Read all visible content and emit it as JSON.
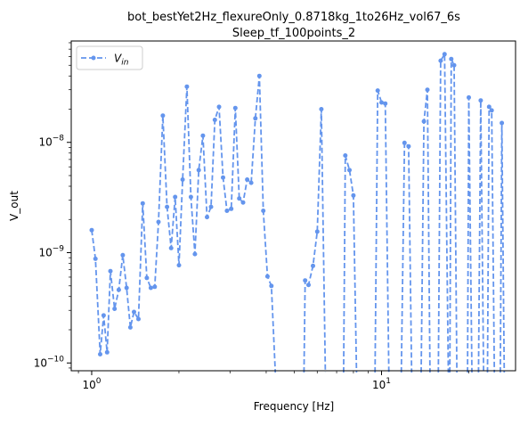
{
  "colors": {
    "series": "#6495ED",
    "axes": "#000000",
    "background": "#ffffff"
  },
  "chart_data": {
    "type": "line",
    "title_line1": "bot_bestYet2Hz_flexureOnly_0.8718kg_1to26Hz_vol67_6s",
    "title_line2": "Sleep_tf_100points_2",
    "xlabel": "Frequency [Hz]",
    "ylabel": "V_out",
    "xscale": "log",
    "yscale": "log",
    "xlim": [
      0.85,
      29
    ],
    "ylim": [
      8.5e-11,
      8.3e-08
    ],
    "grid": false,
    "legend_position": "upper-left",
    "x_ticks": [
      {
        "value": 1,
        "base": "10",
        "exp": "0"
      },
      {
        "value": 10,
        "base": "10",
        "exp": "1"
      }
    ],
    "y_ticks": [
      {
        "value": 1e-10,
        "base": "10",
        "exp": "−10"
      },
      {
        "value": 1e-09,
        "base": "10",
        "exp": "−9"
      },
      {
        "value": 1e-08,
        "base": "10",
        "exp": "−8"
      }
    ],
    "series": [
      {
        "name": "V_in",
        "name_main": "V",
        "name_sub": "in",
        "style": "dashed",
        "marker": "dot",
        "points": [
          [
            1.0,
            1.6e-09
          ],
          [
            1.03,
            8.8e-10
          ],
          [
            1.07,
            1.2e-10
          ],
          [
            1.1,
            2.7e-10
          ],
          [
            1.13,
            1.25e-10
          ],
          [
            1.16,
            6.8e-10
          ],
          [
            1.2,
            3.1e-10
          ],
          [
            1.24,
            4.6e-10
          ],
          [
            1.28,
            9.5e-10
          ],
          [
            1.32,
            4.8e-10
          ],
          [
            1.36,
            2.1e-10
          ],
          [
            1.4,
            2.9e-10
          ],
          [
            1.45,
            2.5e-10
          ],
          [
            1.5,
            2.8e-09
          ],
          [
            1.55,
            5.9e-10
          ],
          [
            1.6,
            4.8e-10
          ],
          [
            1.65,
            4.9e-10
          ],
          [
            1.7,
            1.9e-09
          ],
          [
            1.76,
            1.75e-08
          ],
          [
            1.82,
            2.6e-09
          ],
          [
            1.88,
            1.1e-09
          ],
          [
            1.94,
            3.2e-09
          ],
          [
            2.0,
            7.7e-10
          ],
          [
            2.06,
            4.6e-09
          ],
          [
            2.13,
            3.2e-08
          ],
          [
            2.2,
            3.2e-09
          ],
          [
            2.27,
            9.7e-10
          ],
          [
            2.34,
            5.6e-09
          ],
          [
            2.42,
            1.15e-08
          ],
          [
            2.5,
            2.1e-09
          ],
          [
            2.58,
            2.6e-09
          ],
          [
            2.66,
            1.6e-08
          ],
          [
            2.75,
            2.1e-08
          ],
          [
            2.84,
            4.8e-09
          ],
          [
            2.93,
            2.4e-09
          ],
          [
            3.03,
            2.5e-09
          ],
          [
            3.13,
            2.05e-08
          ],
          [
            3.23,
            3.1e-09
          ],
          [
            3.33,
            2.85e-09
          ],
          [
            3.44,
            4.6e-09
          ],
          [
            3.55,
            4.3e-09
          ],
          [
            3.67,
            1.65e-08
          ],
          [
            3.79,
            4e-08
          ],
          [
            3.91,
            2.4e-09
          ],
          [
            4.04,
            6.1e-10
          ],
          [
            4.17,
            5e-10
          ],
          [
            4.3,
            null
          ],
          [
            5.4,
            null
          ],
          [
            5.45,
            5.6e-10
          ],
          [
            5.6,
            5.1e-10
          ],
          [
            5.8,
            7.6e-10
          ],
          [
            6.0,
            1.55e-09
          ],
          [
            6.2,
            2e-08
          ],
          [
            6.4,
            null
          ],
          [
            7.4,
            null
          ],
          [
            7.5,
            7.6e-09
          ],
          [
            7.75,
            5.6e-09
          ],
          [
            8.0,
            3.3e-09
          ],
          [
            8.2,
            null
          ],
          [
            9.5,
            null
          ],
          [
            9.7,
            2.95e-08
          ],
          [
            10.0,
            2.3e-08
          ],
          [
            10.3,
            2.25e-08
          ],
          [
            10.6,
            null
          ],
          [
            11.7,
            null
          ],
          [
            12.0,
            9.9e-09
          ],
          [
            12.4,
            9.2e-09
          ],
          [
            12.7,
            null
          ],
          [
            13.7,
            null
          ],
          [
            14.0,
            1.55e-08
          ],
          [
            14.4,
            3e-08
          ],
          [
            14.7,
            null
          ],
          [
            15.7,
            null
          ],
          [
            16.0,
            5.5e-08
          ],
          [
            16.5,
            6.3e-08
          ],
          [
            17.0,
            null
          ],
          [
            17.2,
            null
          ],
          [
            17.4,
            5.7e-08
          ],
          [
            17.8,
            5e-08
          ],
          [
            18.2,
            null
          ],
          [
            19.8,
            null
          ],
          [
            20.0,
            2.55e-08
          ],
          [
            20.5,
            null
          ],
          [
            21.6,
            null
          ],
          [
            22.0,
            2.4e-08
          ],
          [
            22.5,
            null
          ],
          [
            23.2,
            null
          ],
          [
            23.5,
            2.1e-08
          ],
          [
            24.0,
            1.95e-08
          ],
          [
            24.5,
            null
          ],
          [
            25.7,
            null
          ],
          [
            26.0,
            1.5e-08
          ],
          [
            26.5,
            null
          ]
        ]
      }
    ]
  }
}
